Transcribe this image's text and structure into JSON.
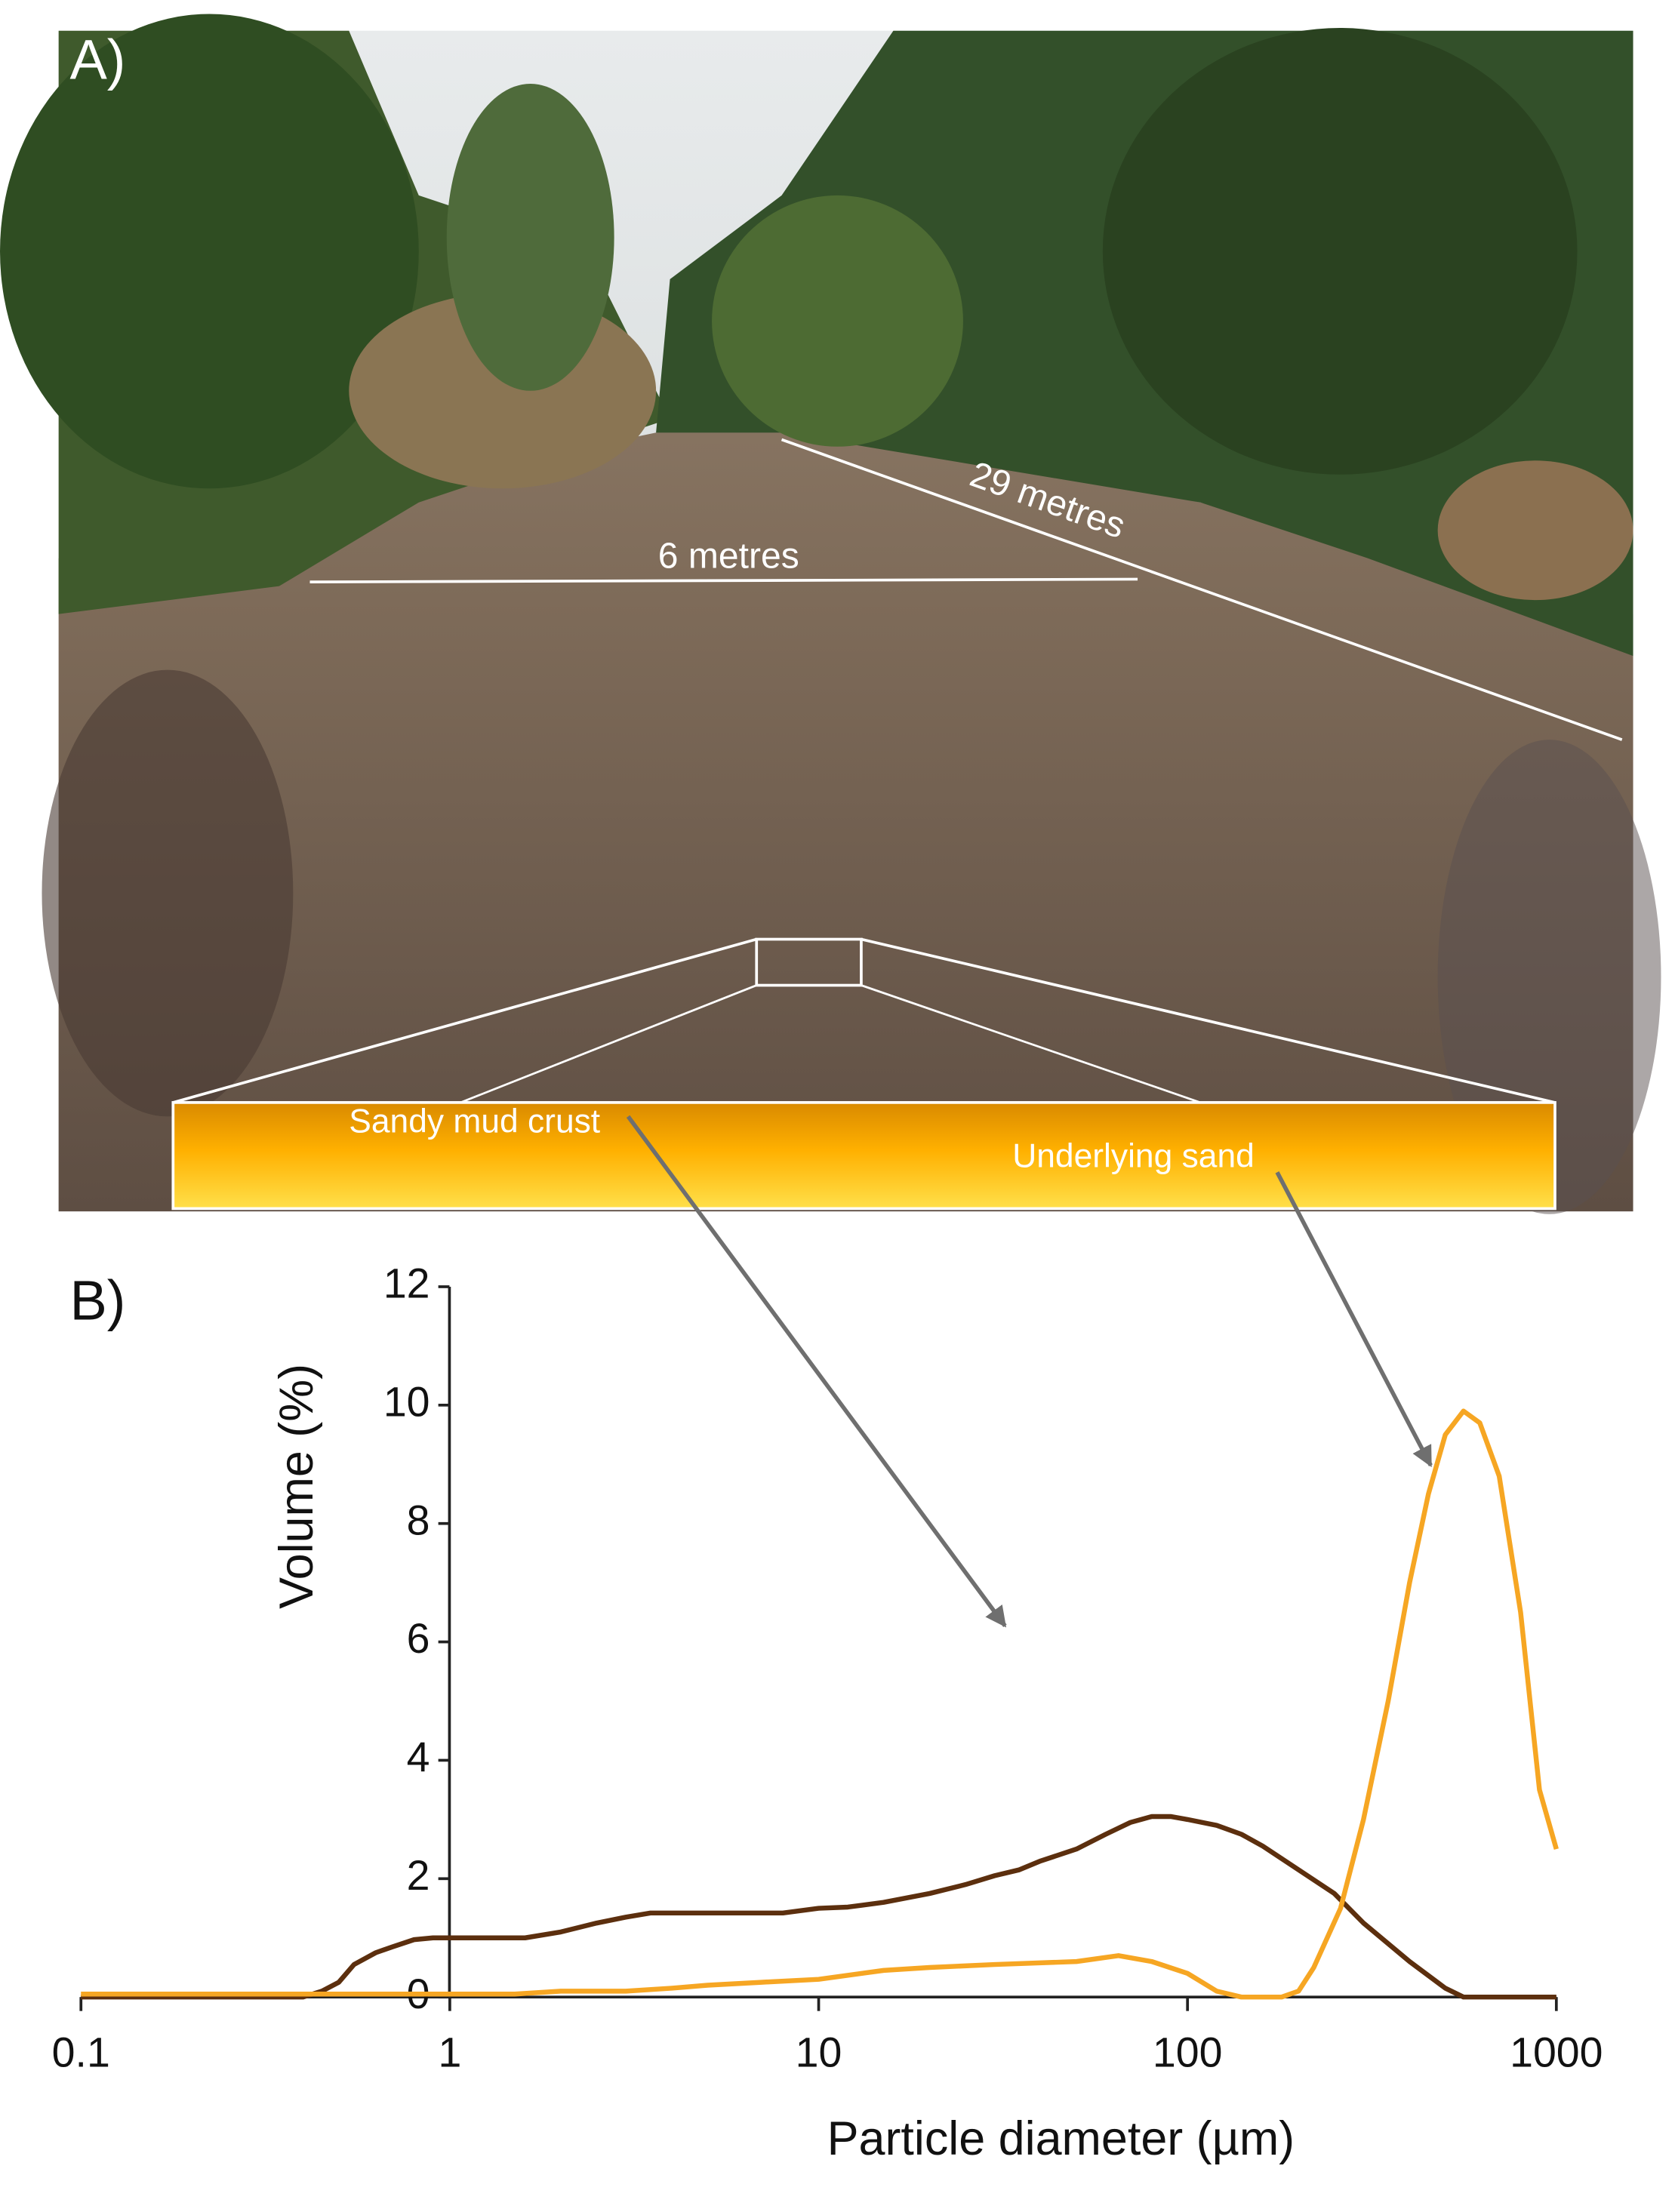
{
  "panel_labels": [
    "A)",
    "B)"
  ],
  "photo": {
    "annotations": [
      "6 metres",
      "29 metres"
    ]
  },
  "chart_data": {
    "type": "line",
    "xlabel": "Particle diameter (µm)",
    "ylabel": "Volume (%)",
    "xlog": true,
    "xlim": [
      0.1,
      1000
    ],
    "xticks": [
      0.1,
      1,
      10,
      100,
      1000
    ],
    "ylim": [
      0,
      12
    ],
    "yticks": [
      0,
      2,
      4,
      6,
      8,
      10,
      12
    ],
    "series": [
      {
        "name": "Sandy mud crust",
        "color": "#5c2f0e",
        "x": [
          0.1,
          0.4,
          0.45,
          0.5,
          0.55,
          0.63,
          0.7,
          0.8,
          0.9,
          1,
          1.6,
          2,
          2.5,
          3,
          3.5,
          4,
          5,
          6,
          8,
          10,
          12,
          15,
          20,
          25,
          30,
          35,
          40,
          50,
          60,
          70,
          80,
          90,
          100,
          120,
          140,
          160,
          200,
          250,
          300,
          400,
          500,
          560,
          700,
          1000
        ],
        "values": [
          0,
          0,
          0.1,
          0.25,
          0.55,
          0.75,
          0.85,
          0.97,
          1.0,
          1.0,
          1.0,
          1.1,
          1.25,
          1.35,
          1.42,
          1.42,
          1.42,
          1.42,
          1.42,
          1.5,
          1.52,
          1.6,
          1.75,
          1.9,
          2.05,
          2.15,
          2.3,
          2.5,
          2.75,
          2.95,
          3.05,
          3.05,
          3.0,
          2.9,
          2.75,
          2.55,
          2.15,
          1.75,
          1.25,
          0.6,
          0.15,
          0,
          0,
          0
        ]
      },
      {
        "name": "Underlying sand",
        "color": "#f6a623",
        "x": [
          0.1,
          0.5,
          1,
          1.5,
          2,
          3,
          4,
          5,
          7,
          10,
          15,
          20,
          30,
          50,
          65,
          80,
          100,
          120,
          140,
          180,
          200,
          220,
          260,
          300,
          350,
          400,
          450,
          500,
          560,
          620,
          700,
          800,
          900,
          1000
        ],
        "values": [
          0.05,
          0.05,
          0.05,
          0.05,
          0.1,
          0.1,
          0.15,
          0.2,
          0.25,
          0.3,
          0.45,
          0.5,
          0.55,
          0.6,
          0.7,
          0.6,
          0.4,
          0.1,
          0,
          0,
          0.1,
          0.5,
          1.5,
          3,
          5,
          7,
          8.5,
          9.5,
          9.9,
          9.7,
          8.8,
          6.5,
          3.5,
          2.5
        ]
      }
    ]
  }
}
